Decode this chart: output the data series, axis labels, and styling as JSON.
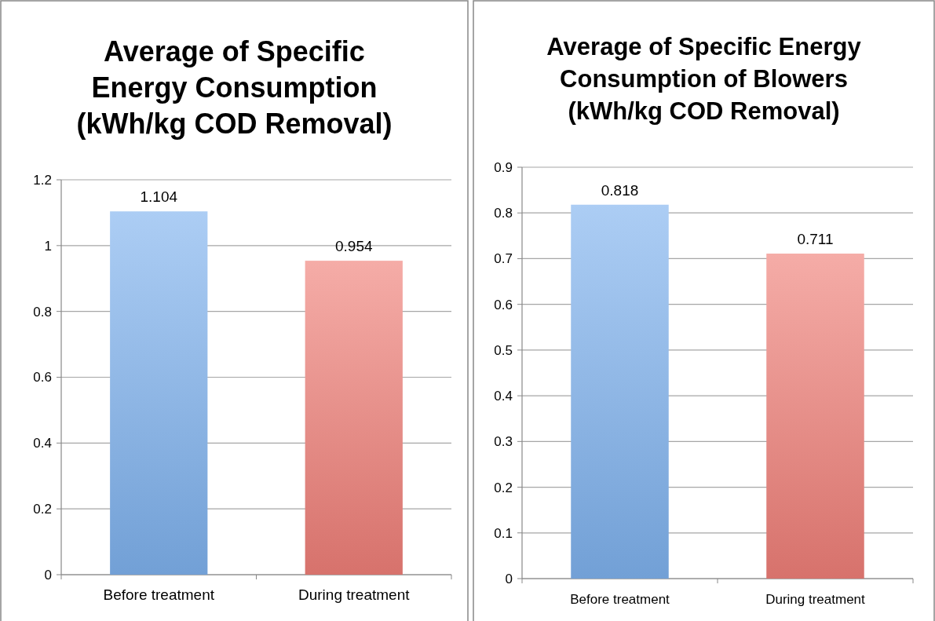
{
  "chart_data": [
    {
      "type": "bar",
      "title": "Average of Specific Energy Consumption (kWh/kg COD Removal)",
      "categories": [
        "Before treatment",
        "During treatment"
      ],
      "values": [
        1.104,
        0.954
      ],
      "colors": [
        "#7fb2ee",
        "#ef7f78"
      ],
      "ylim": [
        0,
        1.2
      ],
      "yticks": [
        0,
        0.2,
        0.4,
        0.6,
        0.8,
        1,
        1.2
      ],
      "grid": "y",
      "data_labels": true
    },
    {
      "type": "bar",
      "title": "Average of Specific Energy Consumption of Blowers (kWh/kg COD Removal)",
      "categories": [
        "Before treatment",
        "During treatment"
      ],
      "values": [
        0.818,
        0.711
      ],
      "colors": [
        "#7fb2ee",
        "#ef7f78"
      ],
      "ylim": [
        0,
        0.9
      ],
      "yticks": [
        0,
        0.1,
        0.2,
        0.3,
        0.4,
        0.5,
        0.6,
        0.7,
        0.8,
        0.9
      ],
      "grid": "y",
      "data_labels": true
    }
  ]
}
